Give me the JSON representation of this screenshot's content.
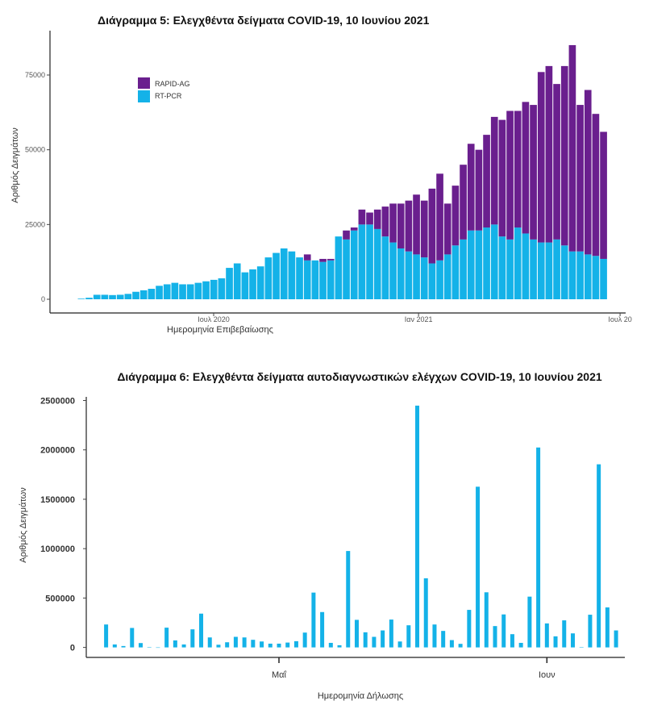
{
  "chart_data": [
    {
      "type": "bar",
      "stacked": true,
      "title": "Διάγραμμα 5: Ελεγχθέντα δείγματα COVID-19, 10 Ιουνίου 2021",
      "xlabel": "Ημερομηνία Επιβεβαίωσης",
      "ylabel": "Αριθμός Δειγμάτων",
      "ylim": [
        0,
        87000
      ],
      "yticks": [
        0,
        25000,
        50000,
        75000
      ],
      "ytick_labels": [
        "0",
        "25000",
        "50000",
        "75000"
      ],
      "xlim": [
        "2020-02-05",
        "2021-07-06"
      ],
      "xticks": [
        "2020-07-01",
        "2021-01-01",
        "2021-07-01"
      ],
      "xtick_labels": [
        "Ιουλ 2020",
        "Ιαν 2021",
        "Ιουλ 20"
      ],
      "x_start": "2020-03-01",
      "x_interval_days": 7,
      "legend_position": "top-left",
      "series": [
        {
          "name": "RT-PCR",
          "color": "#14b2e8",
          "values": [
            200,
            500,
            1500,
            1500,
            1400,
            1500,
            1800,
            2500,
            3000,
            3500,
            4500,
            5000,
            5500,
            5000,
            5000,
            5500,
            6000,
            6500,
            7000,
            10500,
            12000,
            9000,
            10000,
            11000,
            14000,
            15500,
            17000,
            16000,
            14000,
            13000,
            13000,
            12500,
            13000,
            21000,
            20000,
            23000,
            25000,
            25000,
            23500,
            21000,
            19000,
            17000,
            16000,
            15000,
            14000,
            12000,
            13000,
            15000,
            18000,
            20000,
            23000,
            23000,
            24000,
            25000,
            21000,
            20000,
            24000,
            22000,
            20000,
            19000,
            19000,
            20000,
            18000,
            16000,
            16000,
            15000,
            14500,
            13500
          ]
        },
        {
          "name": "RAPID-AG",
          "color": "#6a1f8e",
          "values": [
            0,
            0,
            0,
            0,
            0,
            0,
            0,
            0,
            0,
            0,
            0,
            0,
            0,
            0,
            0,
            0,
            0,
            0,
            0,
            0,
            0,
            0,
            0,
            0,
            0,
            0,
            0,
            0,
            0,
            2000,
            0,
            1000,
            500,
            0,
            3000,
            1000,
            5000,
            4000,
            6500,
            10000,
            13000,
            15000,
            17000,
            20000,
            19000,
            25000,
            29000,
            17000,
            20000,
            25000,
            29000,
            27000,
            31000,
            36000,
            39000,
            43000,
            39000,
            44000,
            45000,
            57000,
            59000,
            52000,
            60000,
            69000,
            49000,
            55000,
            47500,
            42500
          ]
        }
      ]
    },
    {
      "type": "bar",
      "title": "Διάγραμμα 6: Ελεγχθέντα δείγματα αυτοδιαγνωστικών ελέγχων COVID-19, 10 Ιουνίου 2021",
      "xlabel": "Ημερομηνία Δήλωσης",
      "ylabel": "Αριθμός Δειγμάτων",
      "ylim": [
        0,
        2500000
      ],
      "yticks": [
        0,
        500000,
        1000000,
        1500000,
        2000000,
        2500000
      ],
      "ytick_labels": [
        "0",
        "500000",
        "1000000",
        "1500000",
        "2000000",
        "2500000"
      ],
      "x_start": "2021-04-11",
      "x_end": "2021-06-09",
      "xticks": [
        "2021-05-01",
        "2021-06-01"
      ],
      "xtick_labels": [
        "Μαΐ",
        "Ιουν"
      ],
      "color": "#14b2e8",
      "values": [
        232000,
        30000,
        14000,
        197000,
        44000,
        3000,
        0,
        200000,
        71000,
        30000,
        183000,
        342000,
        101000,
        27000,
        52000,
        107000,
        101000,
        77000,
        60000,
        38000,
        38000,
        49000,
        63000,
        150000,
        555000,
        358000,
        46000,
        22000,
        976000,
        279000,
        153000,
        107000,
        172000,
        282000,
        60000,
        224000,
        2448000,
        700000,
        232000,
        167000,
        74000,
        36000,
        380000,
        1627000,
        558000,
        216000,
        334000,
        134000,
        46000,
        514000,
        2024000,
        243000,
        112000,
        274000,
        142000,
        3000,
        331000,
        1854000,
        405000,
        172000
      ]
    }
  ]
}
